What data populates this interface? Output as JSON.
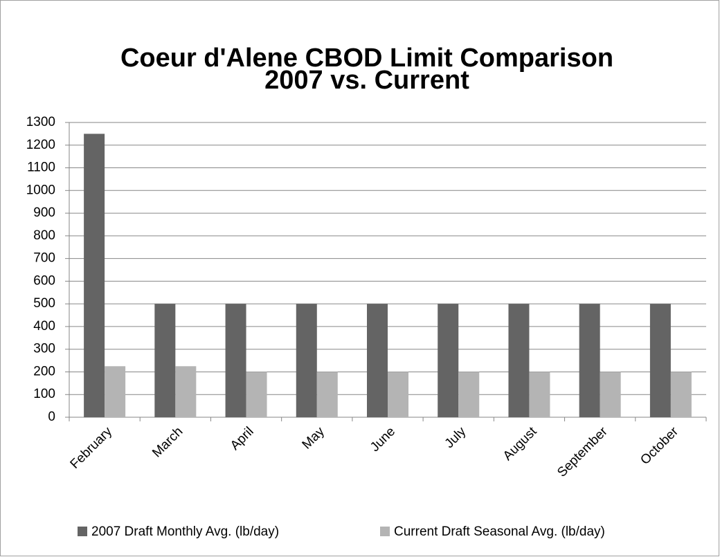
{
  "chart_data": {
    "type": "bar",
    "title": [
      "Coeur d'Alene CBOD Limit Comparison",
      "2007 vs. Current"
    ],
    "categories": [
      "February",
      "March",
      "April",
      "May",
      "June",
      "July",
      "August",
      "September",
      "October"
    ],
    "series": [
      {
        "name": "2007 Draft Monthly Avg. (lb/day)",
        "color": "#646464",
        "values": [
          1250,
          500,
          500,
          500,
          500,
          500,
          500,
          500,
          500
        ]
      },
      {
        "name": "Current Draft Seasonal Avg. (lb/day)",
        "color": "#b4b4b4",
        "values": [
          225,
          225,
          200,
          200,
          200,
          200,
          200,
          200,
          200
        ]
      }
    ],
    "ylim": [
      0,
      1300
    ],
    "yticks": [
      0,
      100,
      200,
      300,
      400,
      500,
      600,
      700,
      800,
      900,
      1000,
      1100,
      1200,
      1300
    ],
    "grid": true,
    "legend": "bottom"
  }
}
